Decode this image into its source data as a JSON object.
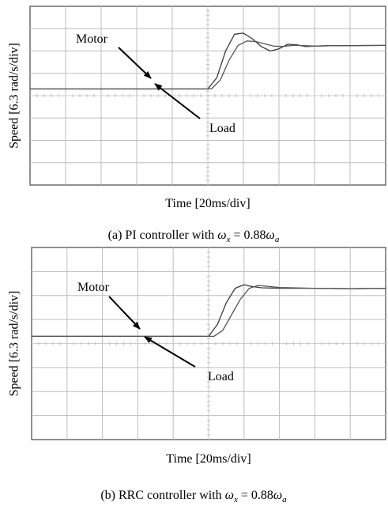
{
  "panels": [
    {
      "caption_prefix": "(a) PI controller with ",
      "caption_eq_lhs": "ω",
      "caption_eq_lhs_sub": "x",
      "caption_eq_mid": " = 0.88",
      "caption_eq_rhs": "ω",
      "caption_eq_rhs_sub": "a"
    },
    {
      "caption_prefix": "(b) RRC controller with ",
      "caption_eq_lhs": "ω",
      "caption_eq_lhs_sub": "x",
      "caption_eq_mid": " = 0.88",
      "caption_eq_rhs": "ω",
      "caption_eq_rhs_sub": "a"
    }
  ],
  "chart_data": [
    {
      "type": "line",
      "title": "",
      "xlabel": "Time [20ms/div]",
      "ylabel": "Speed [6.3 rad/s/div]",
      "grid": true,
      "x_divisions": 10,
      "y_divisions": 8,
      "xlim": [
        0,
        10
      ],
      "ylim": [
        0,
        8
      ],
      "annotations": [
        "Motor",
        "Load"
      ],
      "series": [
        {
          "name": "Motor",
          "x": [
            0,
            5.0,
            5.25,
            5.5,
            5.75,
            6.0,
            6.25,
            6.5,
            6.75,
            7.0,
            7.25,
            7.5,
            7.75,
            8.0,
            8.5,
            9.0,
            10
          ],
          "y": [
            4.3,
            4.3,
            4.8,
            6.0,
            6.75,
            6.8,
            6.55,
            6.2,
            6.0,
            6.1,
            6.3,
            6.28,
            6.2,
            6.22,
            6.24,
            6.24,
            6.25
          ]
        },
        {
          "name": "Load",
          "x": [
            0,
            5.1,
            5.35,
            5.6,
            5.85,
            6.1,
            6.35,
            6.6,
            6.85,
            7.1,
            7.4,
            7.7,
            8.0,
            8.5,
            9.0,
            10
          ],
          "y": [
            4.3,
            4.3,
            4.7,
            5.6,
            6.25,
            6.45,
            6.42,
            6.32,
            6.22,
            6.2,
            6.25,
            6.24,
            6.22,
            6.24,
            6.24,
            6.25
          ]
        }
      ]
    },
    {
      "type": "line",
      "title": "",
      "xlabel": "Time [20ms/div]",
      "ylabel": "Speed [6.3 rad/s/div]",
      "grid": true,
      "x_divisions": 10,
      "y_divisions": 8,
      "xlim": [
        0,
        10
      ],
      "ylim": [
        0,
        8
      ],
      "annotations": [
        "Motor",
        "Load"
      ],
      "series": [
        {
          "name": "Motor",
          "x": [
            0,
            5.0,
            5.25,
            5.5,
            5.75,
            6.0,
            6.2,
            6.5,
            7.0,
            8.0,
            9.0,
            10
          ],
          "y": [
            4.3,
            4.3,
            4.8,
            5.7,
            6.3,
            6.45,
            6.38,
            6.32,
            6.3,
            6.3,
            6.28,
            6.3
          ]
        },
        {
          "name": "Load",
          "x": [
            0,
            5.15,
            5.4,
            5.65,
            5.9,
            6.15,
            6.4,
            7.0,
            8.0,
            9.0,
            10
          ],
          "y": [
            4.3,
            4.3,
            4.55,
            5.2,
            5.85,
            6.3,
            6.42,
            6.33,
            6.3,
            6.28,
            6.3
          ]
        }
      ]
    }
  ]
}
